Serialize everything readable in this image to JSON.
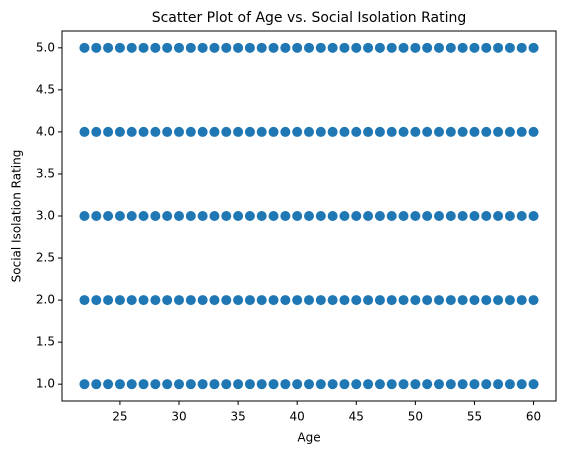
{
  "chart_data": {
    "type": "scatter",
    "title": "Scatter Plot of Age vs. Social Isolation Rating",
    "x_label": "Age",
    "y_label": "Social Isolation Rating",
    "color": "#1f77b4",
    "x": [
      22,
      23,
      24,
      25,
      26,
      27,
      28,
      29,
      30,
      31,
      32,
      33,
      34,
      35,
      36,
      37,
      38,
      39,
      40,
      41,
      42,
      43,
      44,
      45,
      46,
      47,
      48,
      49,
      50,
      51,
      52,
      53,
      54,
      55,
      56,
      57,
      58,
      59,
      60,
      22,
      23,
      24,
      25,
      26,
      27,
      28,
      29,
      30,
      31,
      32,
      33,
      34,
      35,
      36,
      37,
      38,
      39,
      40,
      41,
      42,
      43,
      44,
      45,
      46,
      47,
      48,
      49,
      50,
      51,
      52,
      53,
      54,
      55,
      56,
      57,
      58,
      59,
      60,
      22,
      23,
      24,
      25,
      26,
      27,
      28,
      29,
      30,
      31,
      32,
      33,
      34,
      35,
      36,
      37,
      38,
      39,
      40,
      41,
      42,
      43,
      44,
      45,
      46,
      47,
      48,
      49,
      50,
      51,
      52,
      53,
      54,
      55,
      56,
      57,
      58,
      59,
      60,
      22,
      23,
      24,
      25,
      26,
      27,
      28,
      29,
      30,
      31,
      32,
      33,
      34,
      35,
      36,
      37,
      38,
      39,
      40,
      41,
      42,
      43,
      44,
      45,
      46,
      47,
      48,
      49,
      50,
      51,
      52,
      53,
      54,
      55,
      56,
      57,
      58,
      59,
      60,
      22,
      23,
      24,
      25,
      26,
      27,
      28,
      29,
      30,
      31,
      32,
      33,
      34,
      35,
      36,
      37,
      38,
      39,
      40,
      41,
      42,
      43,
      44,
      45,
      46,
      47,
      48,
      49,
      50,
      51,
      52,
      53,
      54,
      55,
      56,
      57,
      58,
      59,
      60
    ],
    "values": [
      1,
      1,
      1,
      1,
      1,
      1,
      1,
      1,
      1,
      1,
      1,
      1,
      1,
      1,
      1,
      1,
      1,
      1,
      1,
      1,
      1,
      1,
      1,
      1,
      1,
      1,
      1,
      1,
      1,
      1,
      1,
      1,
      1,
      1,
      1,
      1,
      1,
      1,
      1,
      2,
      2,
      2,
      2,
      2,
      2,
      2,
      2,
      2,
      2,
      2,
      2,
      2,
      2,
      2,
      2,
      2,
      2,
      2,
      2,
      2,
      2,
      2,
      2,
      2,
      2,
      2,
      2,
      2,
      2,
      2,
      2,
      2,
      2,
      2,
      2,
      2,
      2,
      2,
      3,
      3,
      3,
      3,
      3,
      3,
      3,
      3,
      3,
      3,
      3,
      3,
      3,
      3,
      3,
      3,
      3,
      3,
      3,
      3,
      3,
      3,
      3,
      3,
      3,
      3,
      3,
      3,
      3,
      3,
      3,
      3,
      3,
      3,
      3,
      3,
      3,
      3,
      3,
      4,
      4,
      4,
      4,
      4,
      4,
      4,
      4,
      4,
      4,
      4,
      4,
      4,
      4,
      4,
      4,
      4,
      4,
      4,
      4,
      4,
      4,
      4,
      4,
      4,
      4,
      4,
      4,
      4,
      4,
      4,
      4,
      4,
      4,
      4,
      4,
      4,
      4,
      4,
      5,
      5,
      5,
      5,
      5,
      5,
      5,
      5,
      5,
      5,
      5,
      5,
      5,
      5,
      5,
      5,
      5,
      5,
      5,
      5,
      5,
      5,
      5,
      5,
      5,
      5,
      5,
      5,
      5,
      5,
      5,
      5,
      5,
      5,
      5,
      5,
      5,
      5,
      5
    ],
    "xlim": [
      20.1,
      61.9
    ],
    "xticks": [
      25,
      30,
      35,
      40,
      45,
      50,
      55,
      60
    ],
    "ylim": [
      0.8,
      5.2
    ],
    "yticks": [
      {
        "value": 1,
        "label": "1.0"
      },
      {
        "value": 1.5,
        "label": "1.5"
      },
      {
        "value": 2,
        "label": "2.0"
      },
      {
        "value": 2.5,
        "label": "2.5"
      },
      {
        "value": 3,
        "label": "3.0"
      },
      {
        "value": 3.5,
        "label": "3.5"
      },
      {
        "value": 4,
        "label": "4.0"
      },
      {
        "value": 4.5,
        "label": "4.5"
      },
      {
        "value": 5,
        "label": "5.0"
      }
    ]
  }
}
